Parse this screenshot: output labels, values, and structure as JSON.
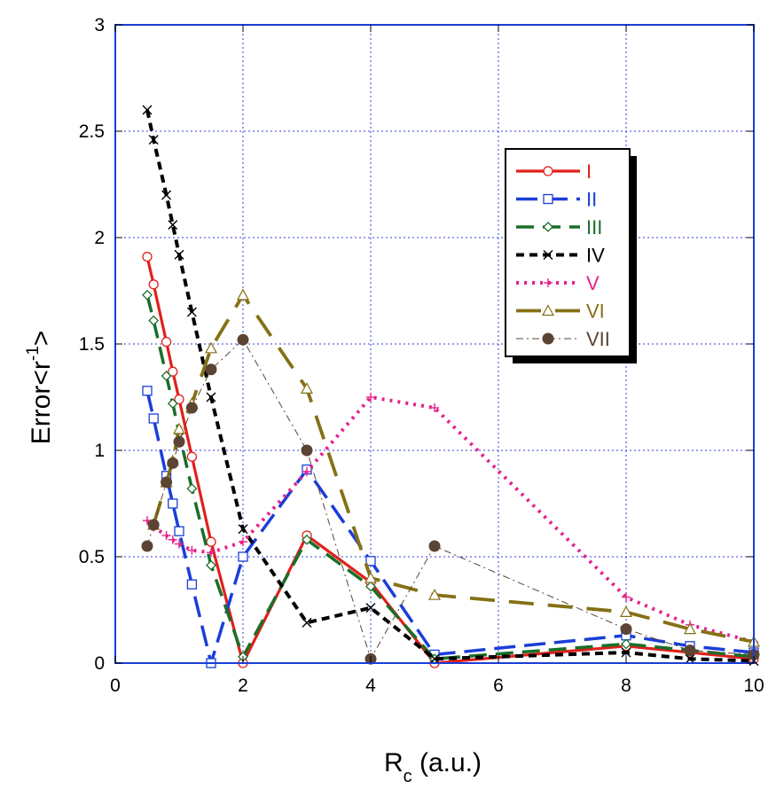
{
  "chart_data": {
    "type": "line",
    "xlabel": "R",
    "xlabel_sub": "c",
    "xlabel_units": "(a.u.)",
    "ylabel": "Error<r",
    "ylabel_sup": "-1",
    "ylabel_end": ">",
    "xlim": [
      0,
      10
    ],
    "ylim": [
      0,
      3
    ],
    "xticks": [
      "0",
      "2",
      "4",
      "6",
      "8",
      "10"
    ],
    "yticks": [
      "0",
      "0.5",
      "1",
      "1.5",
      "2",
      "2.5",
      "3"
    ],
    "grid": true,
    "legend_position": "top-right",
    "series": [
      {
        "name": "I",
        "color": "#e0201c",
        "dash": "solid",
        "marker": "open-circle",
        "x": [
          0.5,
          0.6,
          0.8,
          0.9,
          1.0,
          1.2,
          1.5,
          2,
          3,
          4,
          5,
          8,
          9,
          10
        ],
        "y": [
          1.91,
          1.78,
          1.51,
          1.37,
          1.24,
          0.97,
          0.57,
          0.0,
          0.6,
          0.38,
          0.0,
          0.08,
          0.05,
          0.02
        ]
      },
      {
        "name": "II",
        "color": "#1a3ed8",
        "dash": "longdash",
        "marker": "open-square",
        "x": [
          0.5,
          0.6,
          0.8,
          0.9,
          1.0,
          1.2,
          1.5,
          2,
          3,
          4,
          5,
          8,
          9,
          10
        ],
        "y": [
          1.28,
          1.15,
          0.88,
          0.75,
          0.62,
          0.37,
          0.0,
          0.5,
          0.91,
          0.48,
          0.04,
          0.13,
          0.08,
          0.05
        ]
      },
      {
        "name": "III",
        "color": "#1a6e28",
        "dash": "longdash2",
        "marker": "open-diamond",
        "x": [
          0.5,
          0.6,
          0.8,
          0.9,
          1.0,
          1.2,
          1.5,
          2,
          3,
          4,
          5,
          8,
          9,
          10
        ],
        "y": [
          1.73,
          1.61,
          1.35,
          1.22,
          1.08,
          0.82,
          0.46,
          0.03,
          0.58,
          0.36,
          0.02,
          0.09,
          0.06,
          0.03
        ]
      },
      {
        "name": "IV",
        "color": "#000000",
        "dash": "shortdash",
        "marker": "x",
        "x": [
          0.5,
          0.6,
          0.8,
          0.9,
          1.0,
          1.2,
          1.5,
          2,
          3,
          4,
          5,
          8,
          9,
          10
        ],
        "y": [
          2.6,
          2.46,
          2.2,
          2.06,
          1.92,
          1.65,
          1.25,
          0.63,
          0.19,
          0.26,
          0.02,
          0.05,
          0.02,
          0.01
        ]
      },
      {
        "name": "V",
        "color": "#e8208c",
        "dash": "dot",
        "marker": "plus",
        "x": [
          0.5,
          0.6,
          0.8,
          0.9,
          1.0,
          1.2,
          1.5,
          2,
          3,
          4,
          5,
          8,
          9,
          10
        ],
        "y": [
          0.67,
          0.64,
          0.6,
          0.58,
          0.56,
          0.53,
          0.52,
          0.57,
          0.9,
          1.25,
          1.2,
          0.31,
          0.18,
          0.1
        ]
      },
      {
        "name": "VI",
        "color": "#857015",
        "dash": "longgap",
        "marker": "open-triangle",
        "x": [
          0.6,
          0.8,
          0.9,
          1.0,
          1.2,
          1.5,
          2,
          3,
          4,
          5,
          8,
          9,
          10
        ],
        "y": [
          0.65,
          0.85,
          0.95,
          1.1,
          1.22,
          1.48,
          1.73,
          1.29,
          0.4,
          0.32,
          0.24,
          0.16,
          0.1
        ]
      },
      {
        "name": "VII",
        "color": "#5b4433",
        "dash": "dashdot",
        "marker": "filled-circle",
        "x": [
          0.5,
          0.6,
          0.8,
          0.9,
          1.0,
          1.2,
          1.5,
          2,
          3,
          4,
          5,
          8,
          9,
          10
        ],
        "y": [
          0.55,
          0.65,
          0.85,
          0.94,
          1.04,
          1.2,
          1.38,
          1.52,
          1.0,
          0.02,
          0.55,
          0.16,
          0.06,
          0.04
        ]
      }
    ]
  }
}
